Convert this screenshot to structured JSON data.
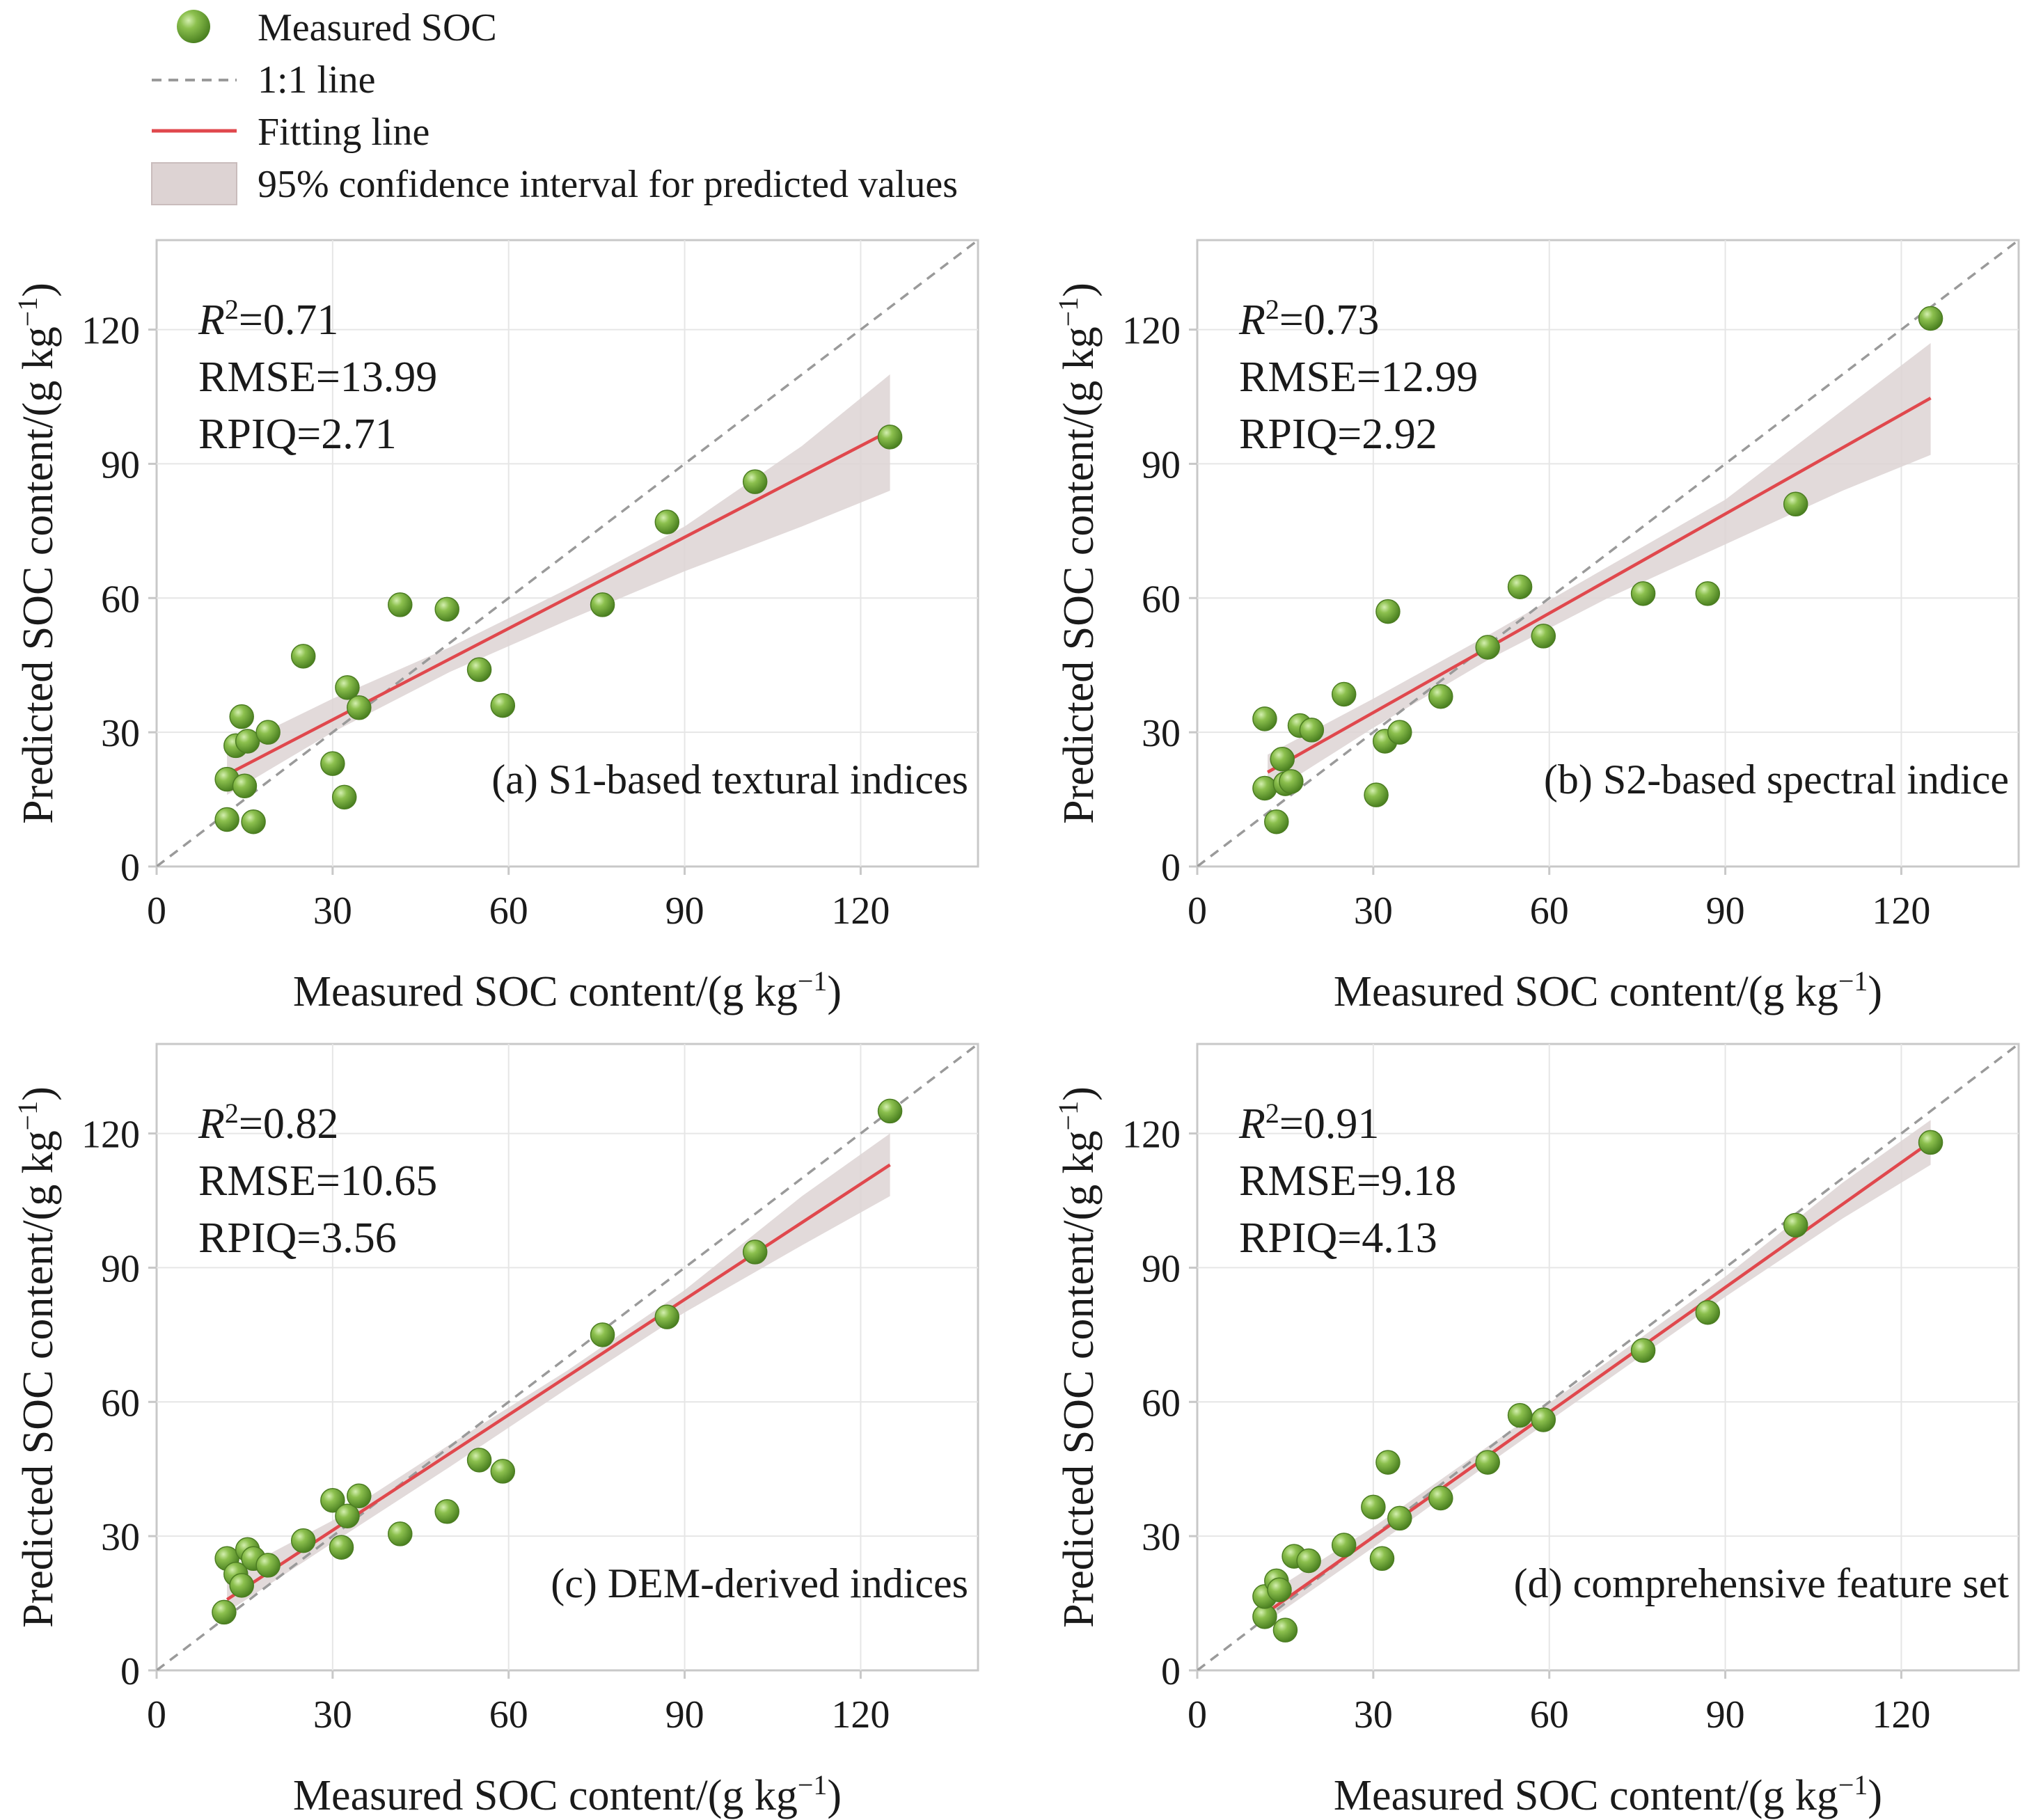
{
  "legend": {
    "measured_label": "Measured SOC",
    "oneone_label": "1:1 line",
    "fit_label": "Fitting line",
    "ci_label": "95% confidence interval for predicted values"
  },
  "colors": {
    "point": "#6aa232",
    "point_highlight": "#c4e59a",
    "point_edge": "#4c7d22",
    "fit_line": "#e0484d",
    "ci_band": "#ddd3d3",
    "oneone_line": "#9a9a9a",
    "grid": "#e6e6e6",
    "axis": "#c8c8c8"
  },
  "axes": {
    "xlabel": "Measured SOC content/(g kg",
    "ylabel": "Predicted SOC content/(g kg",
    "unit_exponent": "−1",
    "unit_close": ")",
    "ticks": [
      0,
      30,
      60,
      90,
      120
    ],
    "tick_labels": [
      "0",
      "30",
      "60",
      "90",
      "120"
    ],
    "xlim": [
      0,
      140
    ],
    "ylim": [
      0,
      140
    ]
  },
  "chart_data": [
    {
      "type": "scatter",
      "panel_label": "(a) S1-based textural indices",
      "r2_symbol": "R",
      "r2_power": "2",
      "r2_value": "=0.71",
      "rmse": "RMSE=13.99",
      "rpiq": "RPIQ=2.71",
      "fit": {
        "slope": 0.68,
        "intercept": 12.4
      },
      "ci": {
        "x": [
          12,
          30,
          50,
          70,
          90,
          110,
          125
        ],
        "lower": [
          16,
          30,
          43.5,
          55,
          66,
          76,
          84
        ],
        "upper": [
          26,
          37.5,
          49,
          62,
          76,
          94,
          110
        ]
      },
      "points": {
        "x": [
          12,
          12,
          13.5,
          14.5,
          15,
          15.5,
          16.5,
          19,
          25,
          30,
          32,
          32.5,
          34.5,
          41.5,
          49.5,
          55,
          59,
          76,
          87,
          102,
          125
        ],
        "y": [
          10.5,
          19.5,
          27,
          33.5,
          18,
          28,
          10,
          30,
          47,
          23,
          15.5,
          40,
          35.5,
          58.5,
          57.5,
          44,
          36,
          58.5,
          77,
          86,
          96
        ]
      }
    },
    {
      "type": "scatter",
      "panel_label": "(b) S2-based spectral indice",
      "r2_symbol": "R",
      "r2_power": "2",
      "r2_value": "=0.73",
      "rmse": "RMSE=12.99",
      "rpiq": "RPIQ=2.92",
      "fit": {
        "slope": 0.74,
        "intercept": 12.2
      },
      "ci": {
        "x": [
          12,
          30,
          50,
          70,
          90,
          110,
          125
        ],
        "lower": [
          16,
          31,
          46.5,
          60,
          72,
          84,
          92
        ],
        "upper": [
          25,
          37.5,
          52,
          67,
          82,
          102,
          117
        ]
      },
      "points": {
        "x": [
          11.5,
          11.5,
          13.5,
          14.5,
          15,
          16,
          17.5,
          19.5,
          25,
          30.5,
          32,
          32.5,
          34.5,
          41.5,
          49.5,
          55,
          59,
          76,
          87,
          102,
          125
        ],
        "y": [
          33,
          17.5,
          10,
          24,
          18.5,
          19,
          31.5,
          30.5,
          38.5,
          16,
          28,
          57,
          30,
          38,
          49,
          62.5,
          51.5,
          61,
          61,
          81,
          122.5
        ]
      }
    },
    {
      "type": "scatter",
      "panel_label": "(c) DEM-derived indices",
      "r2_symbol": "R",
      "r2_power": "2",
      "r2_value": "=0.82",
      "rmse": "RMSE=10.65",
      "rpiq": "RPIQ=3.56",
      "fit": {
        "slope": 0.86,
        "intercept": 5.5
      },
      "ci": {
        "x": [
          12,
          30,
          50,
          70,
          90,
          110,
          125
        ],
        "lower": [
          13,
          28.5,
          45.5,
          63,
          80,
          95,
          106
        ],
        "upper": [
          21,
          33.5,
          50.5,
          67,
          85,
          106,
          120
        ]
      },
      "points": {
        "x": [
          11.5,
          12,
          13.5,
          14.5,
          15.5,
          16.5,
          19,
          25,
          30,
          31.5,
          32.5,
          34.5,
          41.5,
          49.5,
          55,
          59,
          76,
          87,
          102,
          125
        ],
        "y": [
          13,
          25,
          21.5,
          19,
          27,
          25,
          23.5,
          29,
          38,
          27.5,
          34.5,
          39,
          30.5,
          35.5,
          47,
          44.5,
          75,
          79,
          93.5,
          125
        ]
      }
    },
    {
      "type": "scatter",
      "panel_label": "(d) comprehensive feature set",
      "r2_symbol": "R",
      "r2_power": "2",
      "r2_value": "=0.91",
      "rmse": "RMSE=9.18",
      "rpiq": "RPIQ=4.13",
      "fit": {
        "slope": 0.93,
        "intercept": 1.9
      },
      "ci": {
        "x": [
          12,
          30,
          50,
          70,
          90,
          110,
          125
        ],
        "lower": [
          11,
          27.5,
          46.5,
          65,
          83.5,
          101,
          113
        ],
        "upper": [
          17,
          32,
          50.5,
          69,
          88,
          109,
          123
        ]
      },
      "points": {
        "x": [
          11.5,
          11.5,
          13.5,
          14,
          15,
          16.5,
          19,
          25,
          30,
          31.5,
          32.5,
          34.5,
          41.5,
          49.5,
          55,
          59,
          76,
          87,
          102,
          125
        ],
        "y": [
          12,
          16.5,
          20,
          18,
          9,
          25.5,
          24.5,
          28,
          36.5,
          25,
          46.5,
          34,
          38.5,
          46.5,
          57,
          56,
          71.5,
          80,
          99.5,
          118
        ]
      }
    }
  ]
}
